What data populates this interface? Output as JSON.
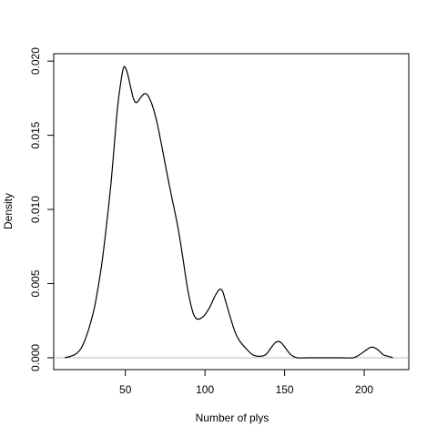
{
  "chart_data": {
    "type": "line",
    "title": "",
    "xlabel": "Number of plys",
    "ylabel": "Density",
    "xlim": [
      5,
      228
    ],
    "ylim": [
      -0.0008,
      0.0205
    ],
    "x_ticks": [
      50,
      100,
      150,
      200
    ],
    "x_tick_labels": [
      "50",
      "100",
      "150",
      "200"
    ],
    "y_ticks": [
      0,
      0.005,
      0.01,
      0.015,
      0.02
    ],
    "y_tick_labels": [
      "0.000",
      "0.005",
      "0.010",
      "0.015",
      "0.020"
    ],
    "baseline": 0,
    "grid": false,
    "legend": "none",
    "colors": {
      "line": "#000000",
      "baseline": "#bebebe",
      "frame": "#000000"
    },
    "series": [
      {
        "x": [
          12,
          18,
          22,
          25,
          28,
          31,
          35,
          38,
          41,
          43,
          45,
          47,
          49,
          51,
          53,
          55,
          57,
          60,
          62,
          64,
          67,
          70,
          73,
          76,
          79,
          83,
          86,
          89,
          92,
          94,
          96,
          98,
          100,
          103,
          106,
          109,
          111,
          113,
          116,
          119,
          122,
          126,
          130,
          134,
          138,
          141,
          144,
          146,
          148,
          151,
          154,
          158,
          165,
          175,
          185,
          193,
          197,
          201,
          204,
          206,
          209,
          212,
          215,
          218
        ],
        "y": [
          0,
          0.0002,
          0.0006,
          0.0013,
          0.0023,
          0.0036,
          0.0062,
          0.0088,
          0.0118,
          0.0143,
          0.0168,
          0.0185,
          0.0196,
          0.0193,
          0.0184,
          0.0175,
          0.0172,
          0.0176,
          0.0178,
          0.0177,
          0.017,
          0.0158,
          0.0142,
          0.0125,
          0.0109,
          0.0088,
          0.0068,
          0.0047,
          0.0032,
          0.0027,
          0.0026,
          0.0027,
          0.0029,
          0.0034,
          0.0041,
          0.0046,
          0.0045,
          0.0038,
          0.0027,
          0.0017,
          0.0011,
          0.0006,
          0.0002,
          0.0001,
          0.0002,
          0.0006,
          0.001,
          0.0011,
          0.001,
          0.0006,
          0.0002,
          0,
          0,
          0,
          0,
          0,
          0.0002,
          0.0005,
          0.0007,
          0.0007,
          0.0005,
          0.0002,
          0.0001,
          0
        ]
      }
    ]
  }
}
